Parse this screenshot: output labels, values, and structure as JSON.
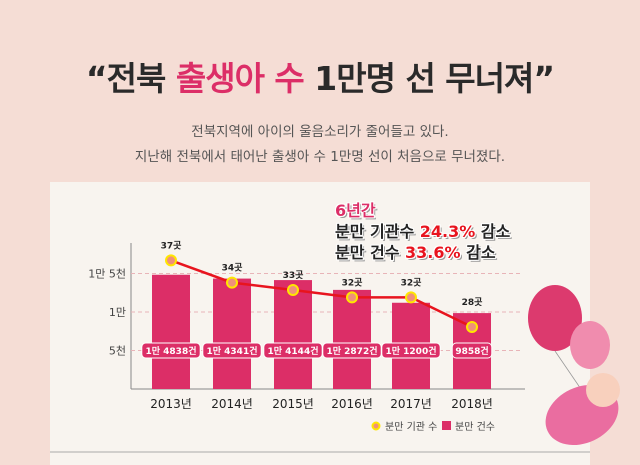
{
  "header": {
    "quote_open": "“",
    "title_part1": "전북 ",
    "title_highlight": "출생아 수",
    "title_part2": " 1만명 선 무너져",
    "quote_close": "”",
    "subtitle_line1": "전북지역에 아이의 울음소리가 줄어들고 있다.",
    "subtitle_line2": "지난해 전북에서 태어난 출생아 수 1만명 선이 처음으로 무너졌다."
  },
  "callout": {
    "period": "6년간",
    "line1_prefix": "분만 기관수 ",
    "line1_value": "24.3%",
    "line1_suffix": " 감소",
    "line2_prefix": "분만 건수 ",
    "line2_value": "33.6%",
    "line2_suffix": " 감소"
  },
  "colors": {
    "bar": "#dc2e67",
    "line": "#e8141e",
    "marker_fill": "#f0907a",
    "marker_ring": "#ffe600",
    "title_accent": "#dc2e67"
  },
  "chart_data": {
    "type": "bar+line",
    "categories": [
      "2013년",
      "2014년",
      "2015년",
      "2016년",
      "2017년",
      "2018년"
    ],
    "y_ticks": [
      {
        "value": 5000,
        "label": "5천"
      },
      {
        "value": 10000,
        "label": "1만"
      },
      {
        "value": 15000,
        "label": "1만 5천"
      }
    ],
    "grid": "dashed horizontal",
    "legend_placement": "bottom-right",
    "series": [
      {
        "name": "분만 건수",
        "type": "bar",
        "values": [
          14838,
          14341,
          14144,
          12872,
          11200,
          9858
        ],
        "labels": [
          "1만 4838건",
          "1만 4341건",
          "1만 4144건",
          "1만 2872건",
          "1만 1200건",
          "9858건"
        ]
      },
      {
        "name": "분만 기관 수",
        "type": "line",
        "values": [
          37,
          34,
          33,
          32,
          32,
          28
        ],
        "labels": [
          "37곳",
          "34곳",
          "33곳",
          "32곳",
          "32곳",
          "28곳"
        ]
      }
    ]
  }
}
